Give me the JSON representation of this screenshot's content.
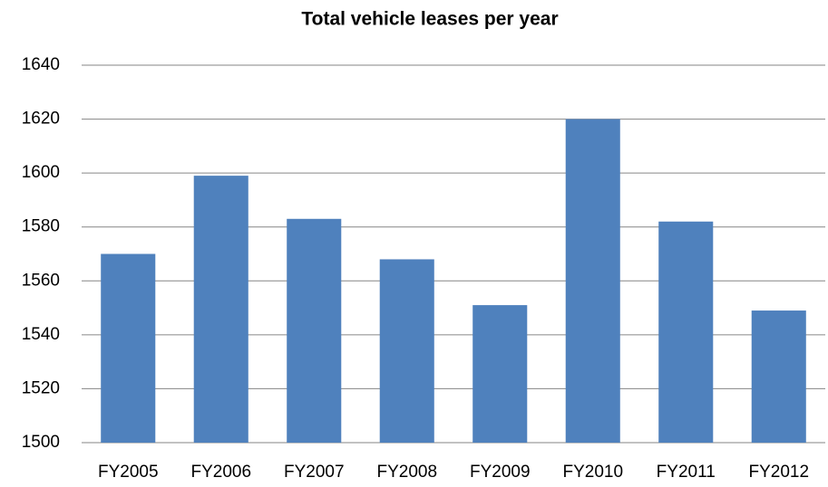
{
  "chart_data": {
    "type": "bar",
    "title": "Total vehicle leases per year",
    "categories": [
      "FY2005",
      "FY2006",
      "FY2007",
      "FY2008",
      "FY2009",
      "FY2010",
      "FY2011",
      "FY2012"
    ],
    "values": [
      1570,
      1599,
      1583,
      1568,
      1551,
      1620,
      1582,
      1549
    ],
    "color": "#4f81bd",
    "ylim": [
      1500,
      1640
    ],
    "yticks": [
      1500,
      1520,
      1540,
      1560,
      1580,
      1600,
      1620,
      1640
    ],
    "grid": true
  }
}
